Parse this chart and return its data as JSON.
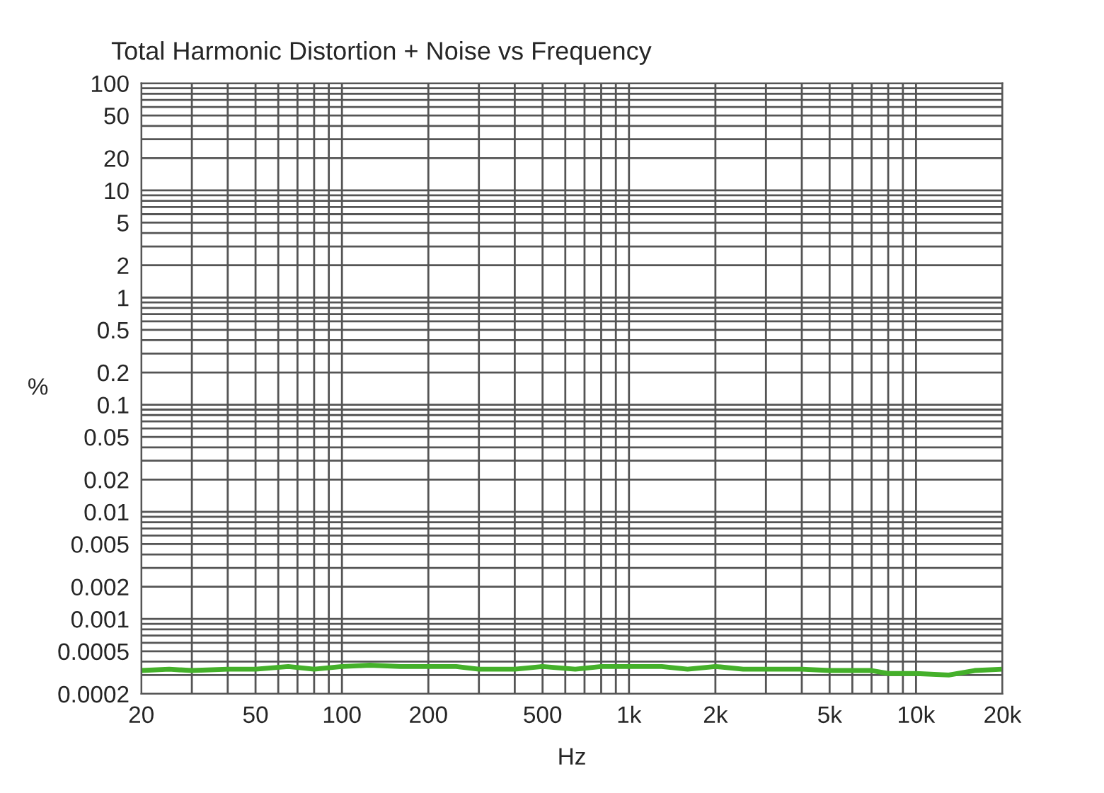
{
  "chart_data": {
    "type": "line",
    "title": "Total Harmonic Distortion + Noise vs Frequency",
    "xlabel": "Hz",
    "ylabel": "%",
    "x": [
      20,
      25,
      30,
      40,
      50,
      65,
      80,
      100,
      125,
      160,
      250,
      300,
      400,
      500,
      650,
      800,
      1000,
      1300,
      1600,
      2000,
      2500,
      4000,
      5000,
      7000,
      8000,
      10000,
      13000,
      16000,
      20000
    ],
    "series": [
      {
        "color": "#44b02a",
        "values": [
          0.00033,
          0.00034,
          0.00033,
          0.00034,
          0.00034,
          0.00036,
          0.00034,
          0.00036,
          0.00037,
          0.00036,
          0.00036,
          0.00034,
          0.00034,
          0.00036,
          0.00034,
          0.00036,
          0.00036,
          0.00036,
          0.00034,
          0.00036,
          0.00034,
          0.00034,
          0.00033,
          0.00033,
          0.00031,
          0.00031,
          0.0003,
          0.00033,
          0.00034
        ]
      }
    ],
    "log": "xy",
    "xlim": [
      20,
      20000
    ],
    "ylim": [
      0.0002,
      100
    ],
    "xticks": [
      20,
      50,
      100,
      200,
      500,
      {
        "value": 1000,
        "label": "1k"
      },
      {
        "value": 2000,
        "label": "2k"
      },
      {
        "value": 5000,
        "label": "5k"
      },
      {
        "value": 10000,
        "label": "10k"
      },
      {
        "value": 20000,
        "label": "20k"
      }
    ],
    "yticks": [
      0.0002,
      0.0005,
      0.001,
      0.002,
      0.005,
      0.01,
      0.02,
      0.05,
      0.1,
      0.2,
      0.5,
      1,
      2,
      5,
      10,
      20,
      50,
      100
    ],
    "grid": true,
    "line_style": "solid",
    "marker": "none",
    "legend": false
  }
}
